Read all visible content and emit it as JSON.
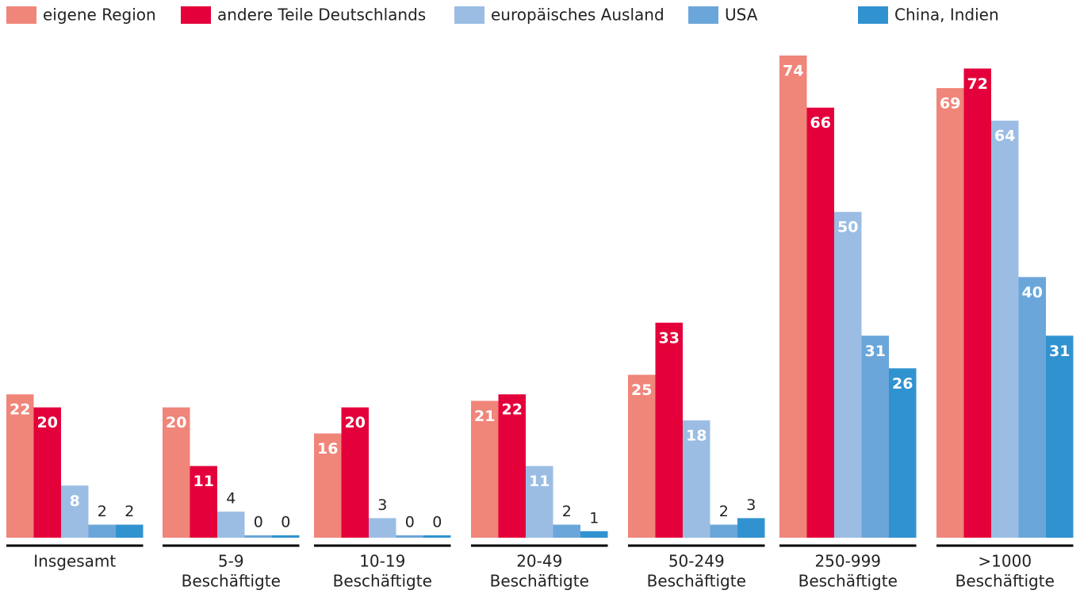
{
  "chart_data": {
    "type": "bar",
    "categories": [
      [
        "Insgesamt"
      ],
      [
        "5-9",
        "Beschäftigte"
      ],
      [
        "10-19",
        "Beschäftigte"
      ],
      [
        "20-49",
        "Beschäftigte"
      ],
      [
        "50-249",
        "Beschäftigte"
      ],
      [
        "250-999",
        "Beschäftigte"
      ],
      [
        ">1000",
        "Beschäftigte"
      ]
    ],
    "series": [
      {
        "name": "eigene Region",
        "color": "#f0857a",
        "values": [
          22,
          20,
          16,
          21,
          25,
          74,
          69
        ]
      },
      {
        "name": "andere Teile Deutschlands",
        "color": "#e4003a",
        "values": [
          20,
          11,
          20,
          22,
          33,
          66,
          72
        ]
      },
      {
        "name": "europäisches Ausland",
        "color": "#9bbde4",
        "values": [
          8,
          4,
          3,
          11,
          18,
          50,
          64
        ]
      },
      {
        "name": "USA",
        "color": "#6aa6d9",
        "values": [
          2,
          0,
          0,
          2,
          2,
          31,
          40
        ]
      },
      {
        "name": "China, Indien",
        "color": "#3192d0",
        "values": [
          2,
          0,
          0,
          1,
          3,
          26,
          31
        ]
      }
    ],
    "ylim": [
      0,
      74
    ],
    "legend": "top"
  }
}
